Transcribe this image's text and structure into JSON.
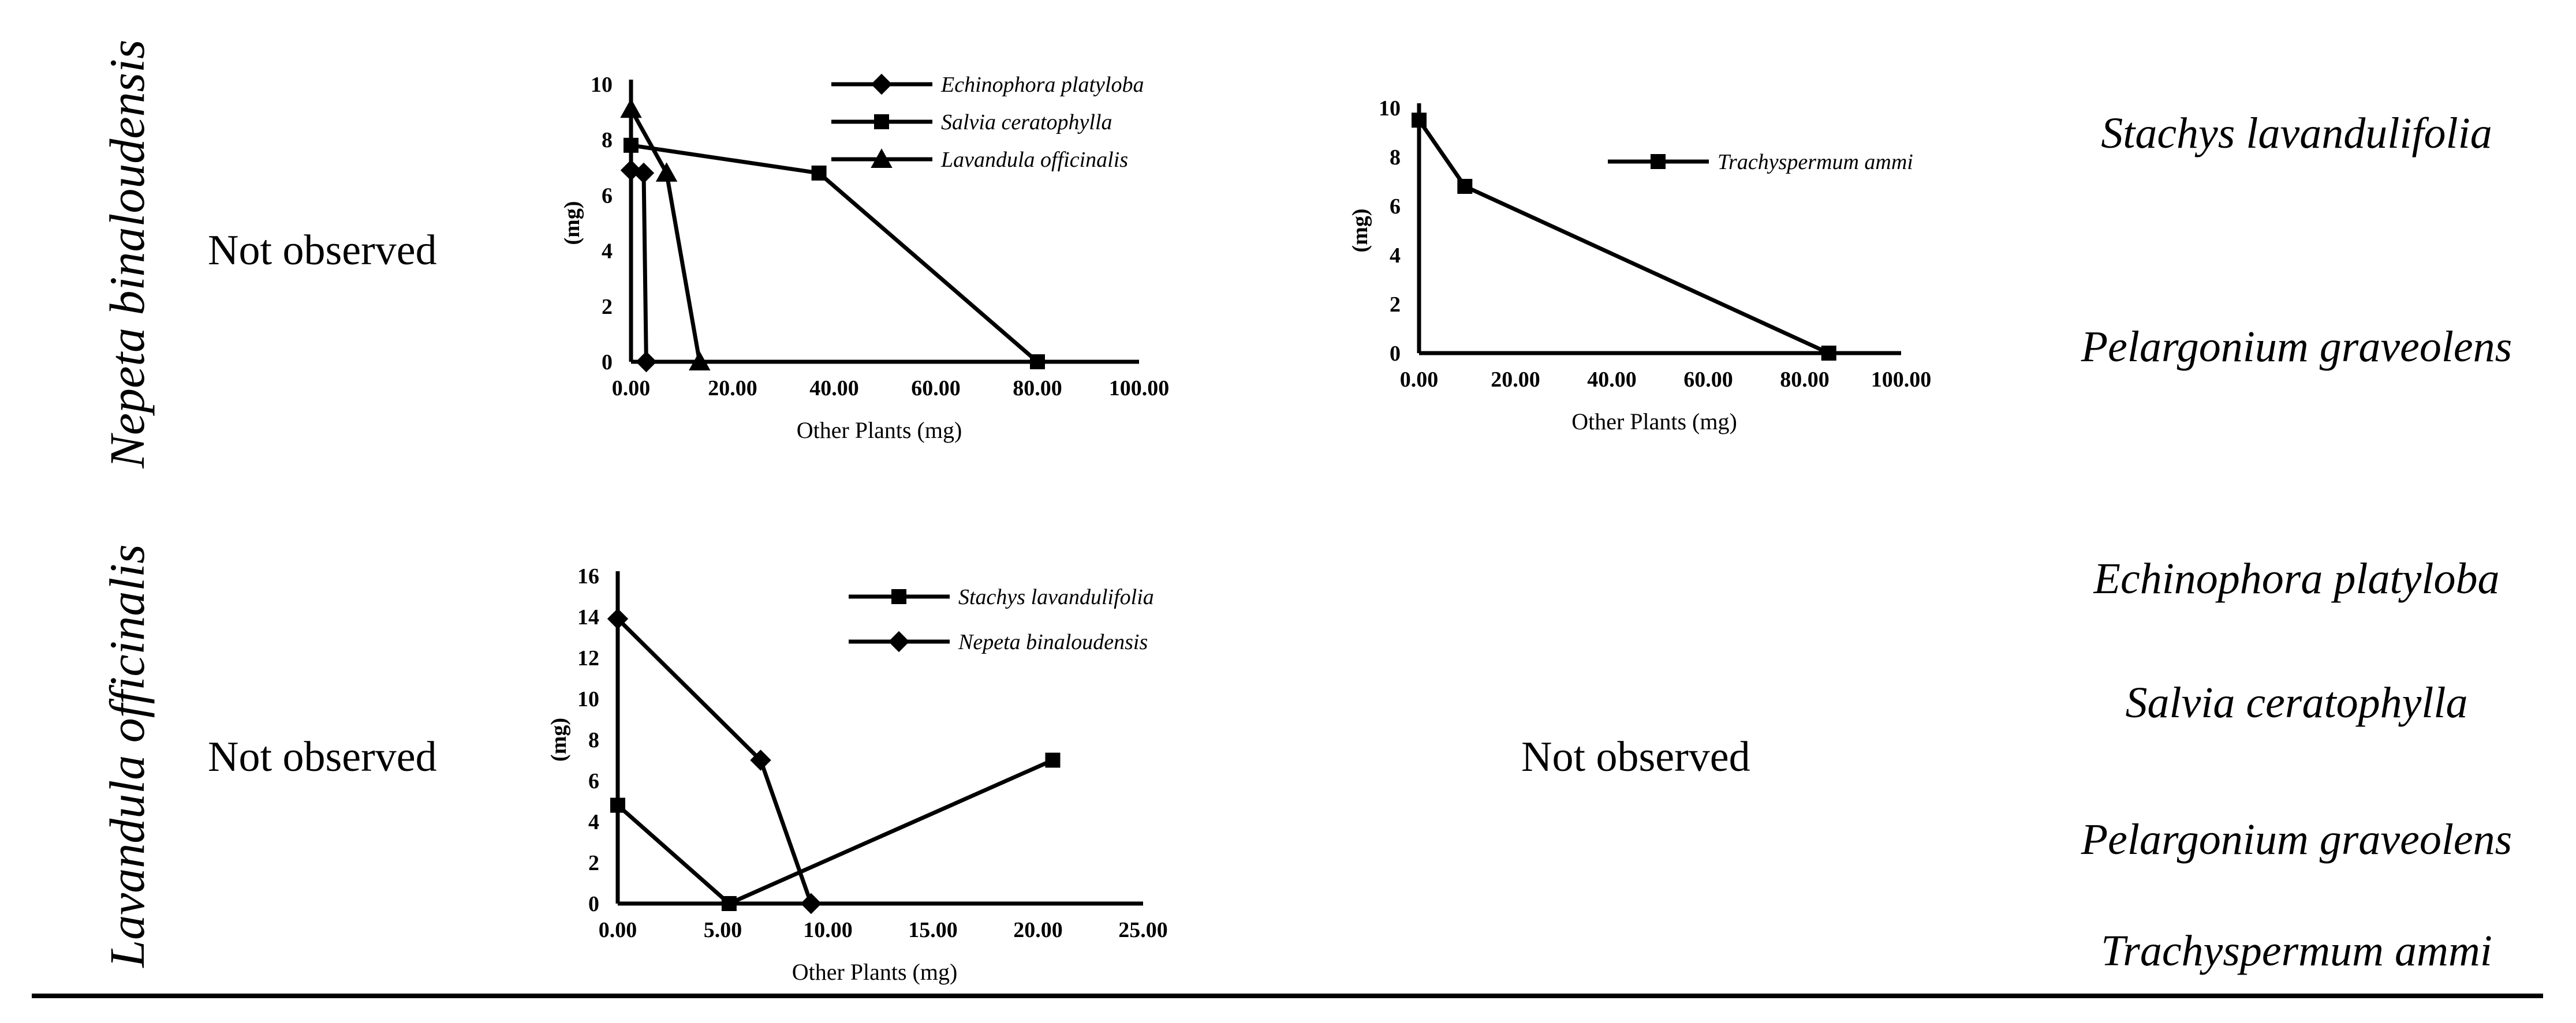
{
  "rows": [
    {
      "label": "Nepeta binaloudensis",
      "col1_text": "Not observed",
      "species_right": [
        "Stachys lavandulifolia",
        "Pelargonium graveolens"
      ]
    },
    {
      "label": "Lavandula officinalis",
      "col1_text": "Not observed",
      "col3_text": "Not observed",
      "species_right": [
        "Echinophora platyloba",
        "Salvia ceratophylla",
        "Pelargonium graveolens",
        "Trachyspermum ammi"
      ]
    }
  ],
  "chart_data": [
    {
      "type": "line",
      "title": "",
      "xlabel": "Other Plants (mg)",
      "ylabel": "(mg)",
      "xlim": [
        0,
        100
      ],
      "ylim": [
        0,
        10
      ],
      "x_ticks": [
        "0.00",
        "20.00",
        "40.00",
        "60.00",
        "80.00",
        "100.00"
      ],
      "y_ticks": [
        "0",
        "2",
        "4",
        "6",
        "8",
        "10"
      ],
      "legend_position": "top-right",
      "series": [
        {
          "name": "Echinophora platyloba",
          "marker": "diamond",
          "x": [
            0,
            2.5,
            3
          ],
          "y": [
            6.9,
            6.8,
            0
          ]
        },
        {
          "name": "Salvia ceratophylla",
          "marker": "square",
          "x": [
            0,
            37,
            80
          ],
          "y": [
            7.8,
            6.8,
            0
          ]
        },
        {
          "name": "Lavandula officinalis",
          "marker": "triangle",
          "x": [
            0,
            7,
            13.5
          ],
          "y": [
            9.1,
            6.8,
            0
          ]
        }
      ]
    },
    {
      "type": "line",
      "title": "",
      "xlabel": "Other Plants (mg)",
      "ylabel": "(mg)",
      "xlim": [
        0,
        100
      ],
      "ylim": [
        0,
        10
      ],
      "x_ticks": [
        "0.00",
        "20.00",
        "40.00",
        "60.00",
        "80.00",
        "100.00"
      ],
      "y_ticks": [
        "0",
        "2",
        "4",
        "6",
        "8",
        "10"
      ],
      "legend_position": "top-right",
      "series": [
        {
          "name": "Trachyspermum ammi",
          "marker": "square",
          "x": [
            0,
            9.5,
            85
          ],
          "y": [
            9.5,
            6.8,
            0
          ]
        }
      ]
    },
    {
      "type": "line",
      "title": "",
      "xlabel": "Other Plants (mg)",
      "ylabel": "(mg)",
      "xlim": [
        0,
        25
      ],
      "ylim": [
        0,
        16
      ],
      "x_ticks": [
        "0.00",
        "5.00",
        "10.00",
        "15.00",
        "20.00",
        "25.00"
      ],
      "y_ticks": [
        "0",
        "2",
        "4",
        "6",
        "8",
        "10",
        "12",
        "14",
        "16"
      ],
      "legend_position": "top-right",
      "series": [
        {
          "name": "Stachys lavandulifolia",
          "marker": "square",
          "x": [
            0,
            5.3,
            20.7
          ],
          "y": [
            4.8,
            0,
            7.0
          ]
        },
        {
          "name": "Nepeta binaloudensis",
          "marker": "diamond",
          "x": [
            0,
            6.8,
            9.2
          ],
          "y": [
            13.9,
            7.0,
            0
          ]
        }
      ]
    }
  ]
}
